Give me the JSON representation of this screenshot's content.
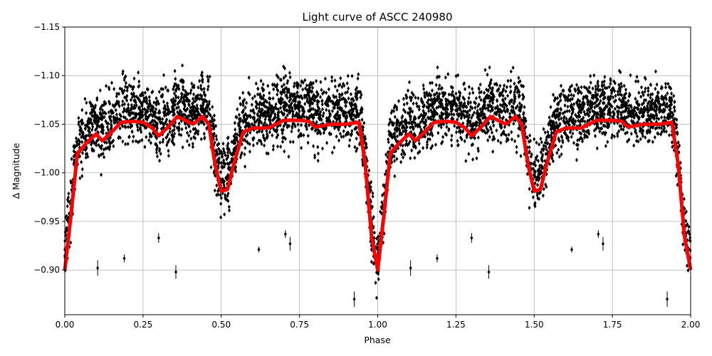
{
  "chart_data": {
    "type": "scatter",
    "title": "Light curve of ASCC 240980",
    "xlabel": "Phase",
    "ylabel": "Δ Magnitude",
    "xlim": [
      0,
      2.0
    ],
    "ylim": [
      -1.15,
      -0.854
    ],
    "y_inverted": true,
    "grid": true,
    "xticks": [
      "0.00",
      "0.25",
      "0.50",
      "0.75",
      "1.00",
      "1.25",
      "1.50",
      "1.75",
      "2.00"
    ],
    "xtick_values": [
      0,
      0.25,
      0.5,
      0.75,
      1.0,
      1.25,
      1.5,
      1.75,
      2.0
    ],
    "yticks": [
      "−1.15",
      "−1.10",
      "−1.05",
      "−1.00",
      "−0.95",
      "−0.90"
    ],
    "ytick_values": [
      -1.15,
      -1.1,
      -1.05,
      -1.0,
      -0.95,
      -0.9
    ],
    "colors": {
      "points": "#000000",
      "model": "#ff0000"
    },
    "model_curve_one_period": {
      "phase": [
        0.0,
        0.02,
        0.04,
        0.07,
        0.1,
        0.12,
        0.15,
        0.18,
        0.22,
        0.25,
        0.28,
        0.3,
        0.33,
        0.36,
        0.39,
        0.41,
        0.44,
        0.46,
        0.48,
        0.5,
        0.52,
        0.54,
        0.57,
        0.6,
        0.65,
        0.7,
        0.75,
        0.78,
        0.8,
        0.85,
        0.9,
        0.94,
        0.96,
        0.98,
        1.0
      ],
      "magnitude": [
        -0.9,
        -0.957,
        -1.02,
        -1.031,
        -1.04,
        -1.033,
        -1.042,
        -1.052,
        -1.053,
        -1.052,
        -1.046,
        -1.038,
        -1.047,
        -1.058,
        -1.053,
        -1.05,
        -1.058,
        -1.05,
        -1.009,
        -0.981,
        -0.983,
        -1.009,
        -1.042,
        -1.046,
        -1.046,
        -1.054,
        -1.054,
        -1.053,
        -1.047,
        -1.05,
        -1.05,
        -1.052,
        -1.009,
        -0.935,
        -0.9
      ]
    },
    "outliers": [
      {
        "x": 0.105,
        "y": -0.902,
        "err": 0.008
      },
      {
        "x": 0.19,
        "y": -0.912,
        "err": 0.004
      },
      {
        "x": 0.3,
        "y": -0.933,
        "err": 0.005
      },
      {
        "x": 0.355,
        "y": -0.898,
        "err": 0.007
      },
      {
        "x": 0.62,
        "y": -0.921,
        "err": 0.003
      },
      {
        "x": 0.705,
        "y": -0.937,
        "err": 0.004
      },
      {
        "x": 0.72,
        "y": -0.927,
        "err": 0.007
      },
      {
        "x": 0.925,
        "y": -0.87,
        "err": 0.008
      },
      {
        "x": 1.105,
        "y": -0.902,
        "err": 0.008
      },
      {
        "x": 1.19,
        "y": -0.912,
        "err": 0.004
      },
      {
        "x": 1.3,
        "y": -0.933,
        "err": 0.005
      },
      {
        "x": 1.355,
        "y": -0.898,
        "err": 0.007
      },
      {
        "x": 1.62,
        "y": -0.921,
        "err": 0.003
      },
      {
        "x": 1.705,
        "y": -0.937,
        "err": 0.004
      },
      {
        "x": 1.72,
        "y": -0.927,
        "err": 0.007
      },
      {
        "x": 1.925,
        "y": -0.87,
        "err": 0.008
      }
    ],
    "scatter_spread": 0.028
  }
}
